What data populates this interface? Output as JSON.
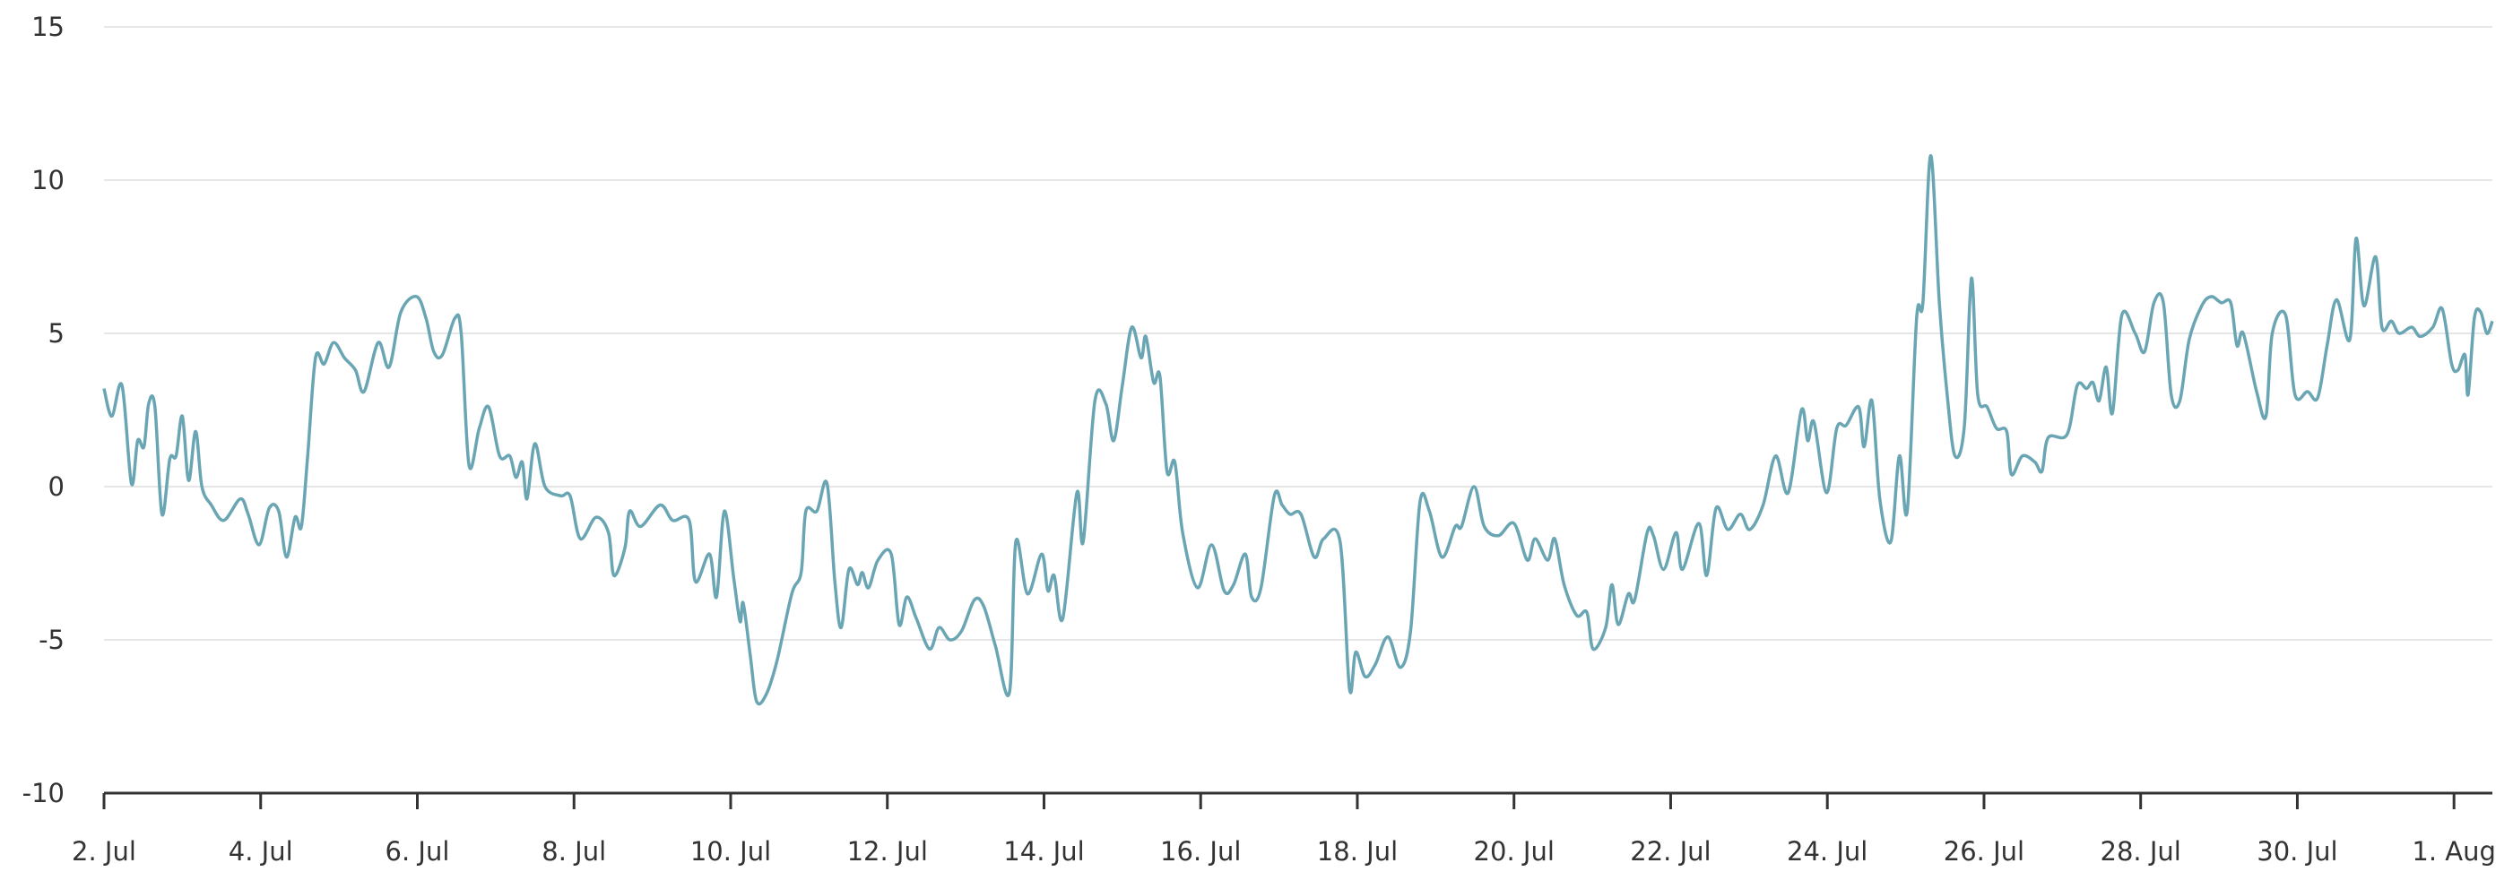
{
  "chart_data": {
    "type": "line",
    "x": [
      2.0,
      2.1,
      2.23,
      2.35,
      2.43,
      2.51,
      2.57,
      2.65,
      2.74,
      2.84,
      2.92,
      3.0,
      3.08,
      3.17,
      3.25,
      3.37,
      3.53,
      3.74,
      3.84,
      3.98,
      4.11,
      4.23,
      4.33,
      4.44,
      4.52,
      4.6,
      4.7,
      4.81,
      4.93,
      5.07,
      5.21,
      5.32,
      5.5,
      5.64,
      5.79,
      5.99,
      6.11,
      6.21,
      6.32,
      6.48,
      6.56,
      6.66,
      6.79,
      6.91,
      7.05,
      7.18,
      7.26,
      7.34,
      7.4,
      7.5,
      7.63,
      7.83,
      7.95,
      8.08,
      8.28,
      8.44,
      8.51,
      8.65,
      8.71,
      8.85,
      9.1,
      9.26,
      9.47,
      9.55,
      9.73,
      9.82,
      9.92,
      10.04,
      10.12,
      10.16,
      10.25,
      10.33,
      10.45,
      10.59,
      10.78,
      10.9,
      10.96,
      11.1,
      11.23,
      11.33,
      11.41,
      11.51,
      11.62,
      11.68,
      11.76,
      11.88,
      12.05,
      12.15,
      12.25,
      12.37,
      12.54,
      12.66,
      12.8,
      12.95,
      13.11,
      13.23,
      13.38,
      13.56,
      13.64,
      13.79,
      13.97,
      14.05,
      14.13,
      14.24,
      14.42,
      14.5,
      14.65,
      14.79,
      14.89,
      15.0,
      15.12,
      15.24,
      15.3,
      15.4,
      15.48,
      15.57,
      15.67,
      15.77,
      15.96,
      16.14,
      16.3,
      16.42,
      16.57,
      16.65,
      16.77,
      16.94,
      17.04,
      17.14,
      17.28,
      17.45,
      17.57,
      17.78,
      17.9,
      17.98,
      18.1,
      18.23,
      18.39,
      18.55,
      18.68,
      18.8,
      18.92,
      19.08,
      19.25,
      19.33,
      19.49,
      19.62,
      19.8,
      20.0,
      20.17,
      20.27,
      20.43,
      20.52,
      20.64,
      20.8,
      20.93,
      21.01,
      21.17,
      21.25,
      21.33,
      21.46,
      21.54,
      21.7,
      21.78,
      21.91,
      22.07,
      22.15,
      22.36,
      22.46,
      22.58,
      22.73,
      22.89,
      23.01,
      23.18,
      23.34,
      23.5,
      23.67,
      23.75,
      23.83,
      23.99,
      24.12,
      24.24,
      24.4,
      24.47,
      24.57,
      24.67,
      24.81,
      24.92,
      25.02,
      25.14,
      25.22,
      25.32,
      25.43,
      25.53,
      25.63,
      25.75,
      25.84,
      25.92,
      26.04,
      26.16,
      26.29,
      26.35,
      26.49,
      26.65,
      26.74,
      26.82,
      27.06,
      27.19,
      27.31,
      27.39,
      27.47,
      27.56,
      27.64,
      27.76,
      27.93,
      28.05,
      28.17,
      28.29,
      28.39,
      28.5,
      28.62,
      28.78,
      28.9,
      29.03,
      29.15,
      29.23,
      29.31,
      29.48,
      29.6,
      29.68,
      29.85,
      29.97,
      30.13,
      30.26,
      30.38,
      30.5,
      30.67,
      30.75,
      30.85,
      31.0,
      31.08,
      31.2,
      31.3,
      31.46,
      31.57,
      31.73,
      31.85,
      31.97,
      32.05,
      32.14,
      32.18,
      32.26,
      32.34,
      32.42,
      32.49
    ],
    "series": [
      {
        "color": "#6aa5b4",
        "values": [
          3.2,
          2.3,
          3.3,
          0.1,
          1.5,
          1.3,
          2.7,
          2.6,
          -0.9,
          0.9,
          1.0,
          2.3,
          0.2,
          1.8,
          0.0,
          -0.6,
          -1.1,
          -0.4,
          -0.9,
          -1.9,
          -0.7,
          -0.8,
          -2.3,
          -1.0,
          -1.3,
          1.0,
          4.2,
          4.0,
          4.7,
          4.2,
          3.8,
          3.1,
          4.7,
          3.9,
          5.7,
          6.2,
          5.5,
          4.4,
          4.3,
          5.5,
          5.0,
          0.7,
          1.9,
          2.6,
          1.0,
          1.0,
          0.3,
          0.8,
          -0.4,
          1.4,
          0.0,
          -0.3,
          -0.3,
          -1.7,
          -1.0,
          -1.5,
          -2.9,
          -2.0,
          -0.8,
          -1.3,
          -0.6,
          -1.1,
          -1.1,
          -3.1,
          -2.2,
          -3.6,
          -0.8,
          -3.0,
          -4.4,
          -3.8,
          -5.5,
          -7.0,
          -6.8,
          -5.7,
          -3.5,
          -2.8,
          -0.8,
          -0.8,
          0.1,
          -3.1,
          -4.6,
          -2.7,
          -3.2,
          -2.8,
          -3.3,
          -2.4,
          -2.2,
          -4.5,
          -3.6,
          -4.3,
          -5.3,
          -4.6,
          -5.0,
          -4.7,
          -3.7,
          -3.9,
          -5.2,
          -6.7,
          -1.8,
          -3.5,
          -2.2,
          -3.4,
          -2.9,
          -4.3,
          -0.2,
          -1.8,
          2.8,
          2.7,
          1.5,
          3.3,
          5.2,
          4.2,
          4.9,
          3.4,
          3.6,
          0.5,
          0.8,
          -1.5,
          -3.3,
          -1.9,
          -3.4,
          -3.2,
          -2.2,
          -3.6,
          -3.3,
          -0.3,
          -0.6,
          -0.9,
          -0.9,
          -2.3,
          -1.7,
          -1.8,
          -6.6,
          -5.4,
          -6.2,
          -5.8,
          -4.9,
          -5.9,
          -4.7,
          -0.5,
          -0.8,
          -2.3,
          -1.3,
          -1.3,
          0.0,
          -1.3,
          -1.6,
          -1.2,
          -2.4,
          -1.7,
          -2.4,
          -1.7,
          -3.2,
          -4.2,
          -4.1,
          -5.3,
          -4.6,
          -3.2,
          -4.5,
          -3.5,
          -3.7,
          -1.5,
          -1.6,
          -2.7,
          -1.5,
          -2.7,
          -1.2,
          -2.9,
          -0.7,
          -1.4,
          -0.9,
          -1.4,
          -0.6,
          1.0,
          -0.2,
          2.5,
          1.5,
          2.1,
          -0.2,
          1.9,
          2.0,
          2.6,
          1.3,
          2.8,
          -0.4,
          -1.8,
          1.0,
          -0.8,
          5.5,
          6.0,
          10.8,
          6.0,
          3.0,
          1.0,
          2.0,
          6.8,
          3.0,
          2.6,
          1.9,
          1.8,
          0.4,
          1.0,
          0.8,
          0.5,
          1.6,
          1.7,
          3.3,
          3.2,
          3.4,
          2.8,
          3.9,
          2.4,
          5.6,
          5.0,
          4.4,
          6.0,
          6.0,
          3.0,
          2.8,
          4.8,
          5.9,
          6.2,
          6.0,
          6.0,
          4.6,
          5.0,
          3.1,
          2.3,
          5.0,
          5.6,
          3.0,
          3.1,
          2.9,
          4.6,
          6.1,
          4.8,
          8.1,
          5.9,
          7.5,
          5.2,
          5.4,
          5.0,
          5.2,
          4.9,
          5.2,
          5.8,
          4.0,
          3.8,
          4.3,
          3.0,
          5.5,
          5.7,
          5.0,
          5.4
        ]
      }
    ],
    "xlim": [
      2,
      32.49
    ],
    "xticks": [
      {
        "value": 2,
        "label": "2. Jul"
      },
      {
        "value": 4,
        "label": "4. Jul"
      },
      {
        "value": 6,
        "label": "6. Jul"
      },
      {
        "value": 8,
        "label": "8. Jul"
      },
      {
        "value": 10,
        "label": "10. Jul"
      },
      {
        "value": 12,
        "label": "12. Jul"
      },
      {
        "value": 14,
        "label": "14. Jul"
      },
      {
        "value": 16,
        "label": "16. Jul"
      },
      {
        "value": 18,
        "label": "18. Jul"
      },
      {
        "value": 20,
        "label": "20. Jul"
      },
      {
        "value": 22,
        "label": "22. Jul"
      },
      {
        "value": 24,
        "label": "24. Jul"
      },
      {
        "value": 26,
        "label": "26. Jul"
      },
      {
        "value": 28,
        "label": "28. Jul"
      },
      {
        "value": 30,
        "label": "30. Jul"
      },
      {
        "value": 32,
        "label": "1. Aug"
      }
    ],
    "ylim": [
      -10,
      15
    ],
    "yticks": [
      -10,
      -5,
      0,
      5,
      10,
      15
    ],
    "grid": true
  }
}
